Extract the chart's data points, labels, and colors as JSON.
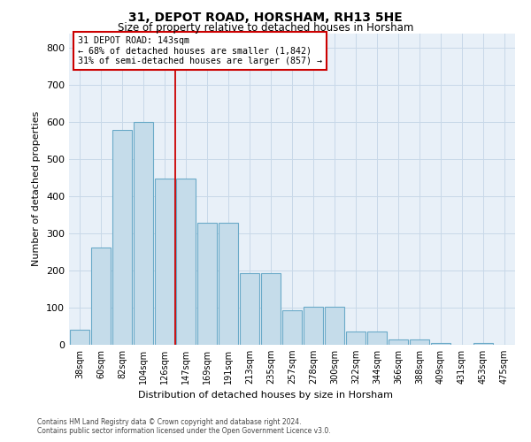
{
  "title": "31, DEPOT ROAD, HORSHAM, RH13 5HE",
  "subtitle": "Size of property relative to detached houses in Horsham",
  "xlabel": "Distribution of detached houses by size in Horsham",
  "ylabel": "Number of detached properties",
  "bar_color": "#c5dcea",
  "bar_edge_color": "#6aaac8",
  "categories": [
    "38sqm",
    "60sqm",
    "82sqm",
    "104sqm",
    "126sqm",
    "147sqm",
    "169sqm",
    "191sqm",
    "213sqm",
    "235sqm",
    "257sqm",
    "278sqm",
    "300sqm",
    "322sqm",
    "344sqm",
    "366sqm",
    "388sqm",
    "409sqm",
    "431sqm",
    "453sqm",
    "475sqm"
  ],
  "bar_values": [
    40,
    262,
    580,
    600,
    447,
    447,
    330,
    330,
    192,
    192,
    92,
    103,
    103,
    35,
    35,
    14,
    14,
    5,
    0,
    5,
    0
  ],
  "ylim": [
    0,
    840
  ],
  "yticks": [
    0,
    100,
    200,
    300,
    400,
    500,
    600,
    700,
    800
  ],
  "vline_pos": 4.5,
  "annotation_title": "31 DEPOT ROAD: 143sqm",
  "annotation_line1": "← 68% of detached houses are smaller (1,842)",
  "annotation_line2": "31% of semi-detached houses are larger (857) →",
  "annotation_box_facecolor": "#ffffff",
  "annotation_box_edgecolor": "#cc0000",
  "vline_color": "#cc0000",
  "bg_axes": "#e8f0f8",
  "bg_fig": "#ffffff",
  "grid_color": "#c8d8e8",
  "footer1": "Contains HM Land Registry data © Crown copyright and database right 2024.",
  "footer2": "Contains public sector information licensed under the Open Government Licence v3.0."
}
